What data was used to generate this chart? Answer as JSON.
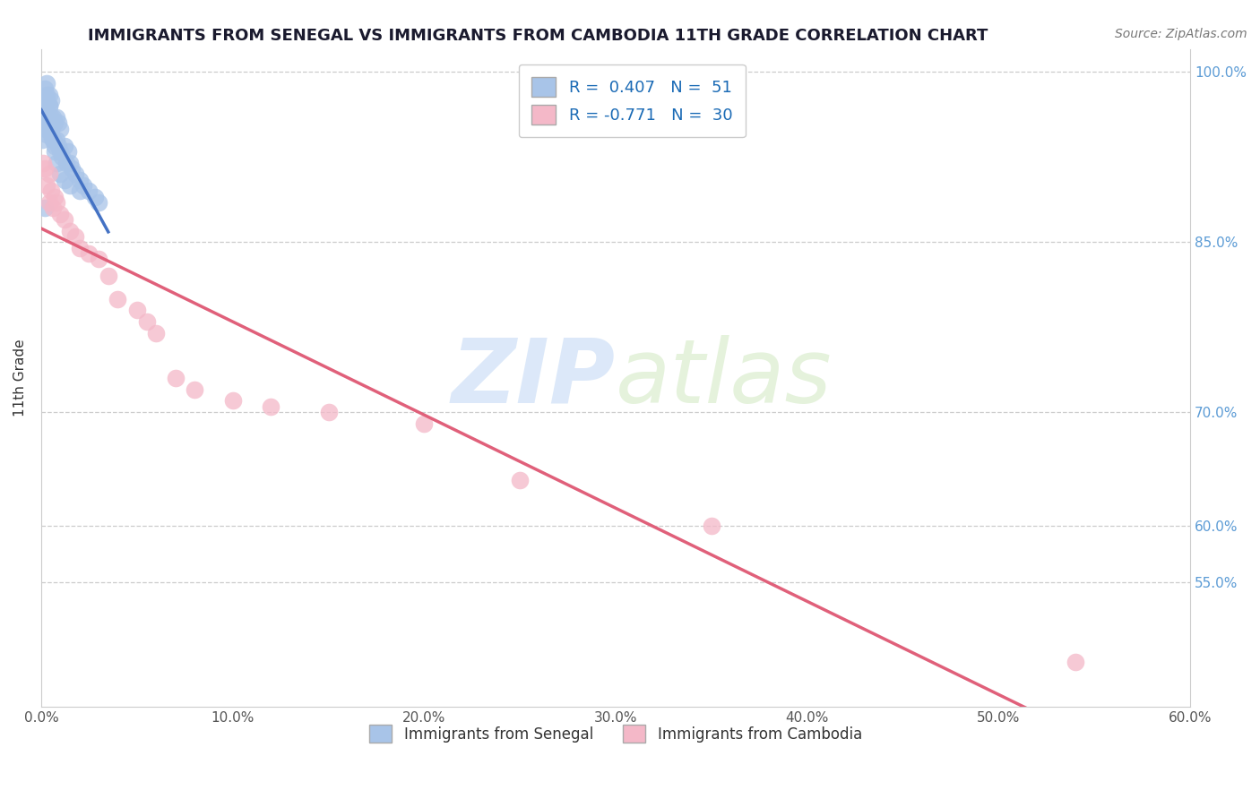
{
  "title": "IMMIGRANTS FROM SENEGAL VS IMMIGRANTS FROM CAMBODIA 11TH GRADE CORRELATION CHART",
  "source": "Source: ZipAtlas.com",
  "ylabel": "11th Grade",
  "xlim": [
    0.0,
    0.6
  ],
  "ylim": [
    0.44,
    1.02
  ],
  "ytick_vals": [
    0.55,
    0.6,
    0.7,
    0.85,
    1.0
  ],
  "ytick_labels": [
    "55.0%",
    "60.0%",
    "70.0%",
    "85.0%",
    "100.0%"
  ],
  "xtick_vals": [
    0.0,
    0.1,
    0.2,
    0.3,
    0.4,
    0.5,
    0.6
  ],
  "xtick_labels": [
    "0.0%",
    "10.0%",
    "20.0%",
    "30.0%",
    "40.0%",
    "50.0%",
    "60.0%"
  ],
  "senegal_R": 0.407,
  "senegal_N": 51,
  "cambodia_R": -0.771,
  "cambodia_N": 30,
  "senegal_color": "#a8c4e8",
  "cambodia_color": "#f4b8c8",
  "senegal_line_color": "#4472C4",
  "cambodia_line_color": "#e0607a",
  "watermark_zip": "ZIP",
  "watermark_atlas": "atlas",
  "background_color": "#ffffff",
  "grid_color": "#cccccc",
  "senegal_x": [
    0.0005,
    0.001,
    0.001,
    0.0015,
    0.002,
    0.002,
    0.0025,
    0.003,
    0.003,
    0.003,
    0.003,
    0.004,
    0.004,
    0.004,
    0.005,
    0.005,
    0.005,
    0.006,
    0.006,
    0.007,
    0.007,
    0.008,
    0.008,
    0.009,
    0.009,
    0.01,
    0.01,
    0.011,
    0.012,
    0.013,
    0.014,
    0.015,
    0.016,
    0.018,
    0.02,
    0.022,
    0.025,
    0.028,
    0.03,
    0.002,
    0.002,
    0.003,
    0.004,
    0.005,
    0.006,
    0.007,
    0.008,
    0.01,
    0.012,
    0.015,
    0.02
  ],
  "senegal_y": [
    0.94,
    0.955,
    0.97,
    0.96,
    0.975,
    0.985,
    0.95,
    0.945,
    0.965,
    0.975,
    0.99,
    0.955,
    0.97,
    0.98,
    0.945,
    0.96,
    0.975,
    0.94,
    0.96,
    0.935,
    0.955,
    0.94,
    0.96,
    0.935,
    0.955,
    0.93,
    0.95,
    0.925,
    0.935,
    0.92,
    0.93,
    0.92,
    0.915,
    0.91,
    0.905,
    0.9,
    0.895,
    0.89,
    0.885,
    0.88,
    0.96,
    0.98,
    0.97,
    0.95,
    0.94,
    0.93,
    0.92,
    0.91,
    0.905,
    0.9,
    0.895
  ],
  "cambodia_x": [
    0.001,
    0.002,
    0.003,
    0.004,
    0.005,
    0.006,
    0.007,
    0.008,
    0.01,
    0.012,
    0.015,
    0.018,
    0.02,
    0.025,
    0.03,
    0.035,
    0.04,
    0.05,
    0.055,
    0.06,
    0.07,
    0.08,
    0.1,
    0.12,
    0.15,
    0.2,
    0.25,
    0.35,
    0.54,
    0.004
  ],
  "cambodia_y": [
    0.92,
    0.915,
    0.9,
    0.91,
    0.895,
    0.88,
    0.89,
    0.885,
    0.875,
    0.87,
    0.86,
    0.855,
    0.845,
    0.84,
    0.835,
    0.82,
    0.8,
    0.79,
    0.78,
    0.77,
    0.73,
    0.72,
    0.71,
    0.705,
    0.7,
    0.69,
    0.64,
    0.6,
    0.48,
    0.885
  ]
}
